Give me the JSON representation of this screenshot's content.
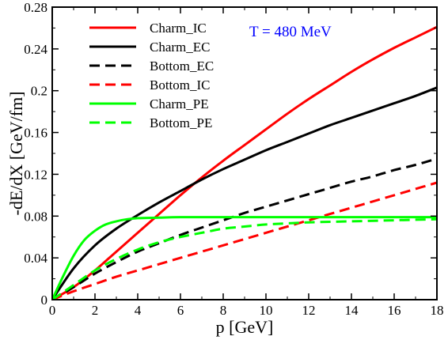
{
  "chart_data": {
    "type": "line",
    "xlabel": "p [GeV]",
    "ylabel": "-dE/dX  [GeV/fm]",
    "xlim": [
      0,
      18
    ],
    "ylim": [
      0,
      0.28
    ],
    "xticks": [
      "0",
      "2",
      "4",
      "6",
      "8",
      "10",
      "12",
      "14",
      "16",
      "18"
    ],
    "yticks": [
      "0",
      "0.04",
      "0.08",
      "0.12",
      "0.16",
      "0.2",
      "0.24",
      "0.28"
    ],
    "annotation": {
      "text": "T = 480 MeV",
      "color": "#0000ff"
    },
    "legend_position": "top-left",
    "grid": false,
    "series": [
      {
        "name": "Charm_IC",
        "color": "#ff0000",
        "dash": "solid",
        "x": [
          0,
          1,
          2,
          3,
          4,
          5,
          6,
          7,
          8,
          9,
          10,
          11,
          12,
          13,
          14,
          15,
          16,
          17,
          18
        ],
        "y": [
          0,
          0.012,
          0.028,
          0.046,
          0.064,
          0.082,
          0.1,
          0.117,
          0.133,
          0.148,
          0.163,
          0.178,
          0.192,
          0.205,
          0.218,
          0.23,
          0.241,
          0.251,
          0.261
        ]
      },
      {
        "name": "Charm_EC",
        "color": "#000000",
        "dash": "solid",
        "x": [
          0,
          1,
          2,
          3,
          4,
          5,
          6,
          7,
          8,
          9,
          10,
          11,
          12,
          13,
          14,
          15,
          16,
          17,
          18
        ],
        "y": [
          0,
          0.03,
          0.052,
          0.068,
          0.081,
          0.093,
          0.104,
          0.115,
          0.125,
          0.134,
          0.143,
          0.151,
          0.159,
          0.167,
          0.174,
          0.181,
          0.188,
          0.195,
          0.203
        ]
      },
      {
        "name": "Bottom_EC",
        "color": "#000000",
        "dash": "dashed",
        "x": [
          0,
          1,
          2,
          3,
          4,
          5,
          6,
          7,
          8,
          9,
          10,
          11,
          12,
          13,
          14,
          15,
          16,
          17,
          18
        ],
        "y": [
          0,
          0.012,
          0.025,
          0.036,
          0.046,
          0.054,
          0.062,
          0.069,
          0.076,
          0.083,
          0.089,
          0.095,
          0.101,
          0.107,
          0.113,
          0.118,
          0.124,
          0.129,
          0.135
        ]
      },
      {
        "name": "Bottom_IC",
        "color": "#ff0000",
        "dash": "dashed",
        "x": [
          0,
          1,
          2,
          3,
          4,
          5,
          6,
          7,
          8,
          9,
          10,
          11,
          12,
          13,
          14,
          15,
          16,
          17,
          18
        ],
        "y": [
          0,
          0.008,
          0.015,
          0.022,
          0.028,
          0.034,
          0.04,
          0.046,
          0.052,
          0.058,
          0.064,
          0.07,
          0.076,
          0.082,
          0.088,
          0.094,
          0.1,
          0.106,
          0.112
        ]
      },
      {
        "name": "Charm_PE",
        "color": "#00ff00",
        "dash": "solid",
        "x": [
          0,
          0.5,
          1,
          1.5,
          2,
          2.5,
          3,
          3.5,
          4,
          5,
          6,
          8,
          10,
          12,
          14,
          16,
          18
        ],
        "y": [
          0,
          0.022,
          0.042,
          0.057,
          0.066,
          0.072,
          0.075,
          0.077,
          0.078,
          0.0785,
          0.079,
          0.079,
          0.079,
          0.079,
          0.079,
          0.079,
          0.079
        ]
      },
      {
        "name": "Bottom_PE",
        "color": "#00ff00",
        "dash": "dashed",
        "x": [
          0,
          1,
          2,
          3,
          4,
          5,
          6,
          7,
          8,
          9,
          10,
          11,
          12,
          14,
          16,
          18
        ],
        "y": [
          0,
          0.014,
          0.028,
          0.039,
          0.048,
          0.055,
          0.06,
          0.064,
          0.068,
          0.07,
          0.072,
          0.073,
          0.074,
          0.075,
          0.076,
          0.077
        ]
      }
    ]
  }
}
